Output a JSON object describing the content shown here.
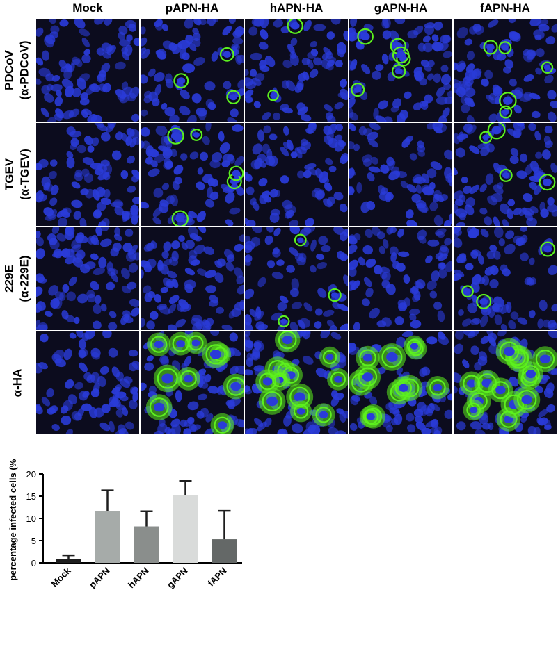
{
  "panel": {
    "columns": [
      "Mock",
      "pAPN-HA",
      "hAPN-HA",
      "gAPN-HA",
      "fAPN-HA"
    ],
    "rows": [
      {
        "line1": "PDCoV",
        "line2": "(α-PDCoV)"
      },
      {
        "line1": "TGEV",
        "line2": "(α-TGEV)"
      },
      {
        "line1": "229E",
        "line2": "(α-229E)"
      },
      {
        "line1": "α-HA",
        "line2": ""
      }
    ],
    "nucleus_color": "#2a3bd9",
    "signal_color": "#5cf01e",
    "background_color": "#0c0c1e"
  },
  "chart_data": {
    "type": "bar",
    "categories": [
      "Mock",
      "pAPN",
      "hAPN",
      "gAPN",
      "fAPN"
    ],
    "values": [
      0.8,
      11.7,
      8.2,
      15.2,
      5.3
    ],
    "errors": [
      0.9,
      4.6,
      3.4,
      3.2,
      6.4
    ],
    "colors": [
      "#1e1e1e",
      "#a6aba9",
      "#8a8e8c",
      "#d9dbda",
      "#646867"
    ],
    "ylabel": "percentage infected cells (%)",
    "xlabel": "",
    "ylim": [
      0,
      20
    ],
    "yticks": [
      0,
      5,
      10,
      15,
      20
    ],
    "grid": false
  }
}
